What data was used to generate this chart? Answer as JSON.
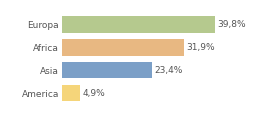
{
  "categories": [
    "America",
    "Asia",
    "Africa",
    "Europa"
  ],
  "values": [
    4.9,
    23.4,
    31.9,
    39.8
  ],
  "labels": [
    "4,9%",
    "23,4%",
    "31,9%",
    "39,8%"
  ],
  "bar_colors": [
    "#f5d57a",
    "#7b9fc7",
    "#e8b882",
    "#b5c98e"
  ],
  "background_color": "#ffffff",
  "xlim": [
    0,
    48
  ],
  "bar_height": 0.72,
  "label_fontsize": 6.5,
  "category_fontsize": 6.5,
  "grid_color": "#dddddd",
  "label_color": "#555555",
  "tick_color": "#555555"
}
